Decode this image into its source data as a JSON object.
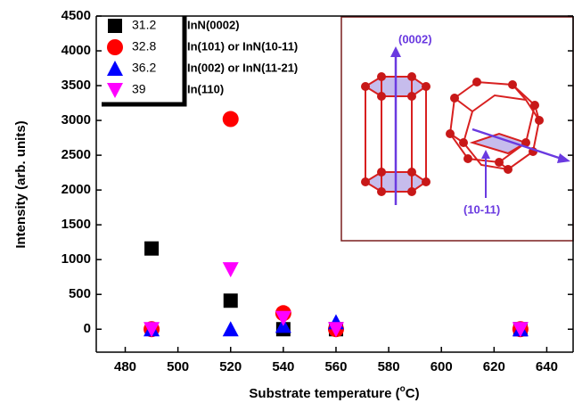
{
  "chart_data": {
    "type": "scatter",
    "x_label": [
      "Substrate temperature (",
      "o",
      "C)"
    ],
    "y_label": "Intensity (arb. units)",
    "x": [
      490,
      520,
      540,
      560,
      630
    ],
    "xlim": [
      469,
      650
    ],
    "xticks": [
      480,
      500,
      520,
      540,
      560,
      580,
      600,
      620,
      640
    ],
    "ylim": [
      -330,
      4500
    ],
    "yticks": [
      0,
      500,
      1000,
      1500,
      2000,
      2500,
      3000,
      3500,
      4000,
      4500
    ],
    "series": [
      {
        "name": "31.2",
        "peak": "InN(0002)",
        "marker": "square",
        "color": "#000000",
        "values": [
          1160,
          410,
          0,
          0,
          0
        ]
      },
      {
        "name": "32.8",
        "peak": "In(101) or InN(10-11)",
        "marker": "circle",
        "color": "#ff0000",
        "values": [
          0,
          3020,
          230,
          0,
          0
        ]
      },
      {
        "name": "36.2",
        "peak": "In(002) or InN(11-21)",
        "marker": "triangle-up",
        "color": "#0000ff",
        "values": [
          0,
          0,
          50,
          100,
          0
        ]
      },
      {
        "name": "39",
        "peak": "In(110)",
        "marker": "triangle-down",
        "color": "#ff00ff",
        "values": [
          0,
          860,
          160,
          0,
          0
        ]
      }
    ],
    "inset_labels": [
      "(0002)",
      "(10-11)"
    ]
  }
}
